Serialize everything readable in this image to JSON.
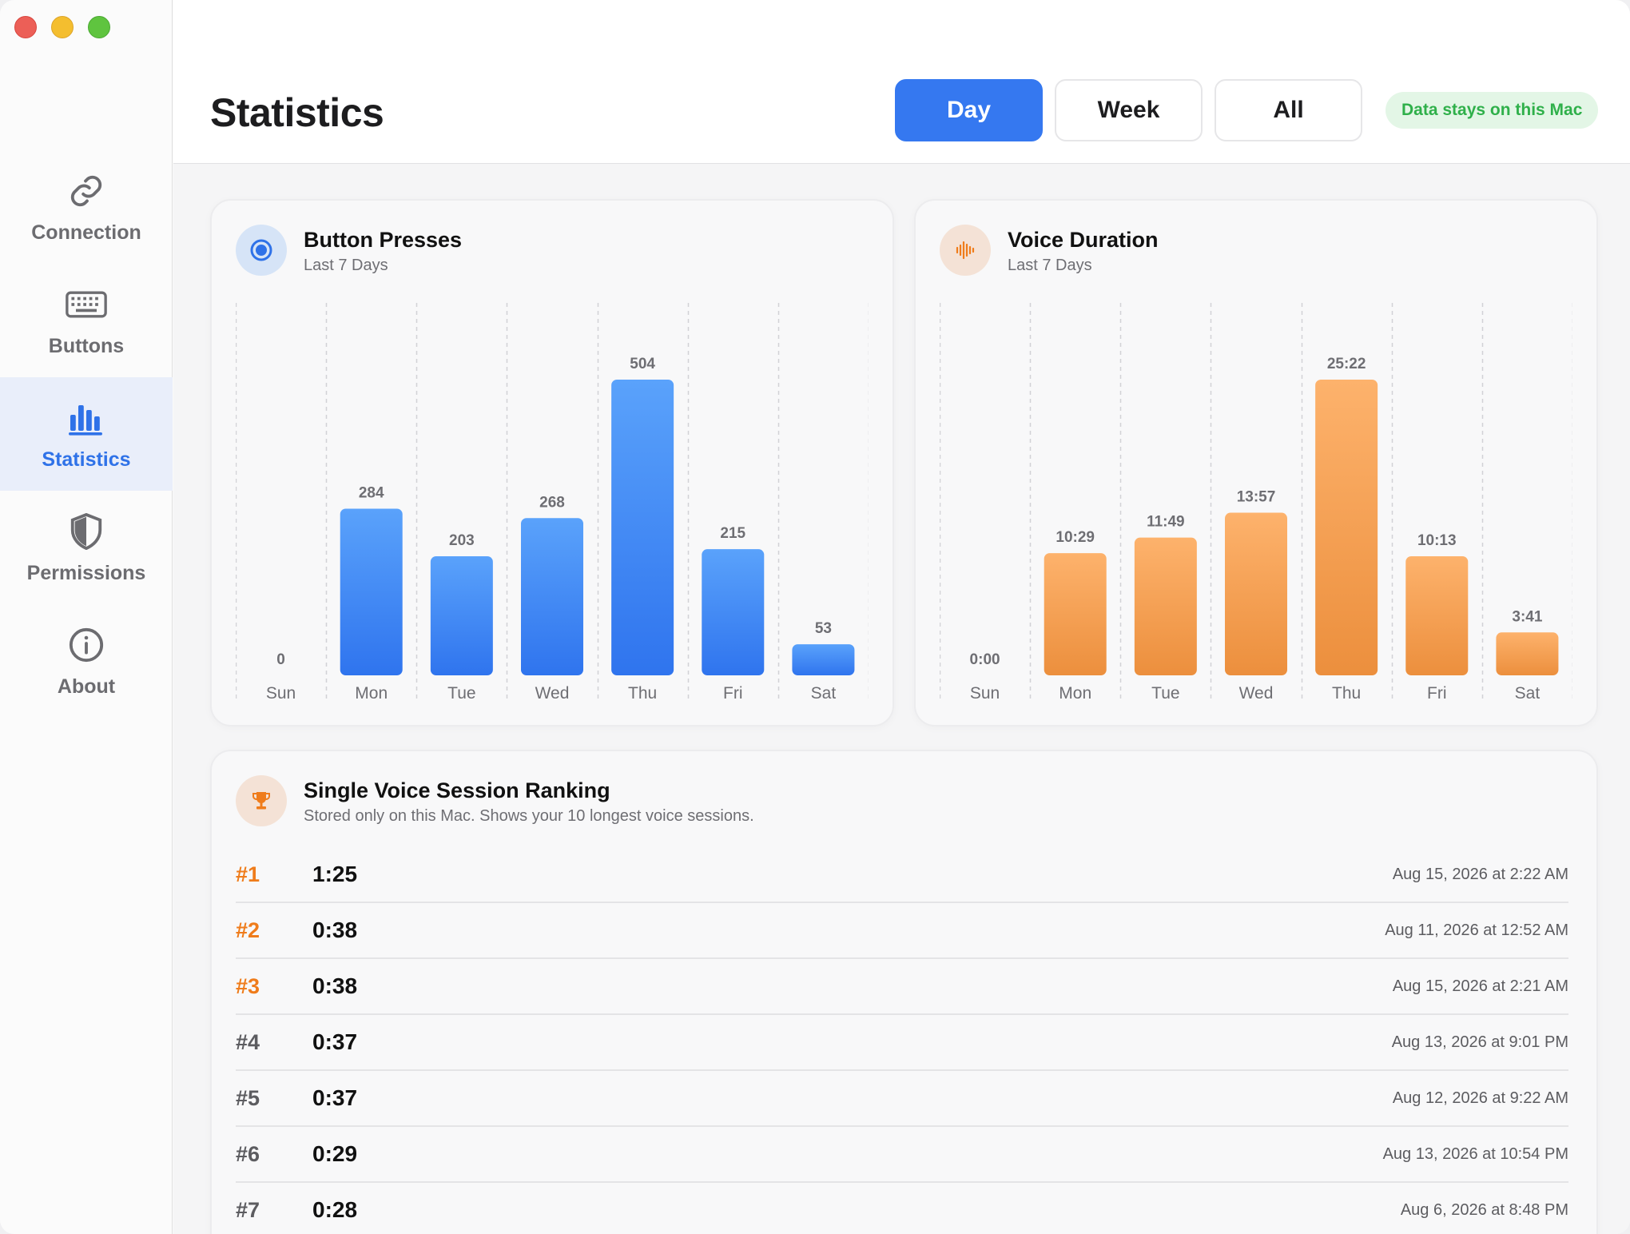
{
  "sidebar": {
    "items": [
      {
        "label": "Connection",
        "icon": "link-icon"
      },
      {
        "label": "Buttons",
        "icon": "keyboard-icon"
      },
      {
        "label": "Statistics",
        "icon": "bar-chart-icon",
        "active": true
      },
      {
        "label": "Permissions",
        "icon": "shield-icon"
      },
      {
        "label": "About",
        "icon": "info-icon"
      }
    ]
  },
  "header": {
    "title": "Statistics",
    "tabs": [
      {
        "label": "Day",
        "active": true
      },
      {
        "label": "Week",
        "active": false
      },
      {
        "label": "All",
        "active": false
      }
    ],
    "privacy_badge": "Data stays on this Mac"
  },
  "colors": {
    "accent": "#3578f0",
    "orange": "#f2994a",
    "privacy_green": "#2fb04a"
  },
  "button_card": {
    "title": "Button Presses",
    "subtitle": "Last 7 Days",
    "icon": "record-button-icon"
  },
  "voice_card": {
    "title": "Voice Duration",
    "subtitle": "Last 7 Days",
    "icon": "waveform-icon"
  },
  "chart_data": [
    {
      "type": "bar",
      "title": "Button Presses",
      "subtitle": "Last 7 Days",
      "categories": [
        "Sun",
        "Mon",
        "Tue",
        "Wed",
        "Thu",
        "Fri",
        "Sat"
      ],
      "values": [
        0,
        284,
        203,
        268,
        504,
        215,
        53
      ],
      "value_labels": [
        "0",
        "284",
        "203",
        "268",
        "504",
        "215",
        "53"
      ],
      "color": "#3b82f6",
      "grid": "vertical-dashed"
    },
    {
      "type": "bar",
      "title": "Voice Duration",
      "subtitle": "Last 7 Days",
      "categories": [
        "Sun",
        "Mon",
        "Tue",
        "Wed",
        "Thu",
        "Fri",
        "Sat"
      ],
      "values": [
        0,
        629,
        709,
        837,
        1522,
        613,
        221
      ],
      "value_labels": [
        "0:00",
        "10:29",
        "11:49",
        "13:57",
        "25:22",
        "10:13",
        "3:41"
      ],
      "color": "#f2994a",
      "grid": "vertical-dashed"
    }
  ],
  "ranking": {
    "title": "Single Voice Session Ranking",
    "subtitle": "Stored only on this Mac. Shows your 10 longest voice sessions.",
    "icon": "trophy-icon",
    "rows": [
      {
        "rank": "#1",
        "duration": "1:25",
        "date": "Aug 15, 2026 at 2:22 AM"
      },
      {
        "rank": "#2",
        "duration": "0:38",
        "date": "Aug 11, 2026 at 12:52 AM"
      },
      {
        "rank": "#3",
        "duration": "0:38",
        "date": "Aug 15, 2026 at 2:21 AM"
      },
      {
        "rank": "#4",
        "duration": "0:37",
        "date": "Aug 13, 2026 at 9:01 PM"
      },
      {
        "rank": "#5",
        "duration": "0:37",
        "date": "Aug 12, 2026 at 9:22 AM"
      },
      {
        "rank": "#6",
        "duration": "0:29",
        "date": "Aug 13, 2026 at 10:54 PM"
      },
      {
        "rank": "#7",
        "duration": "0:28",
        "date": "Aug 6, 2026 at 8:48 PM"
      }
    ]
  }
}
